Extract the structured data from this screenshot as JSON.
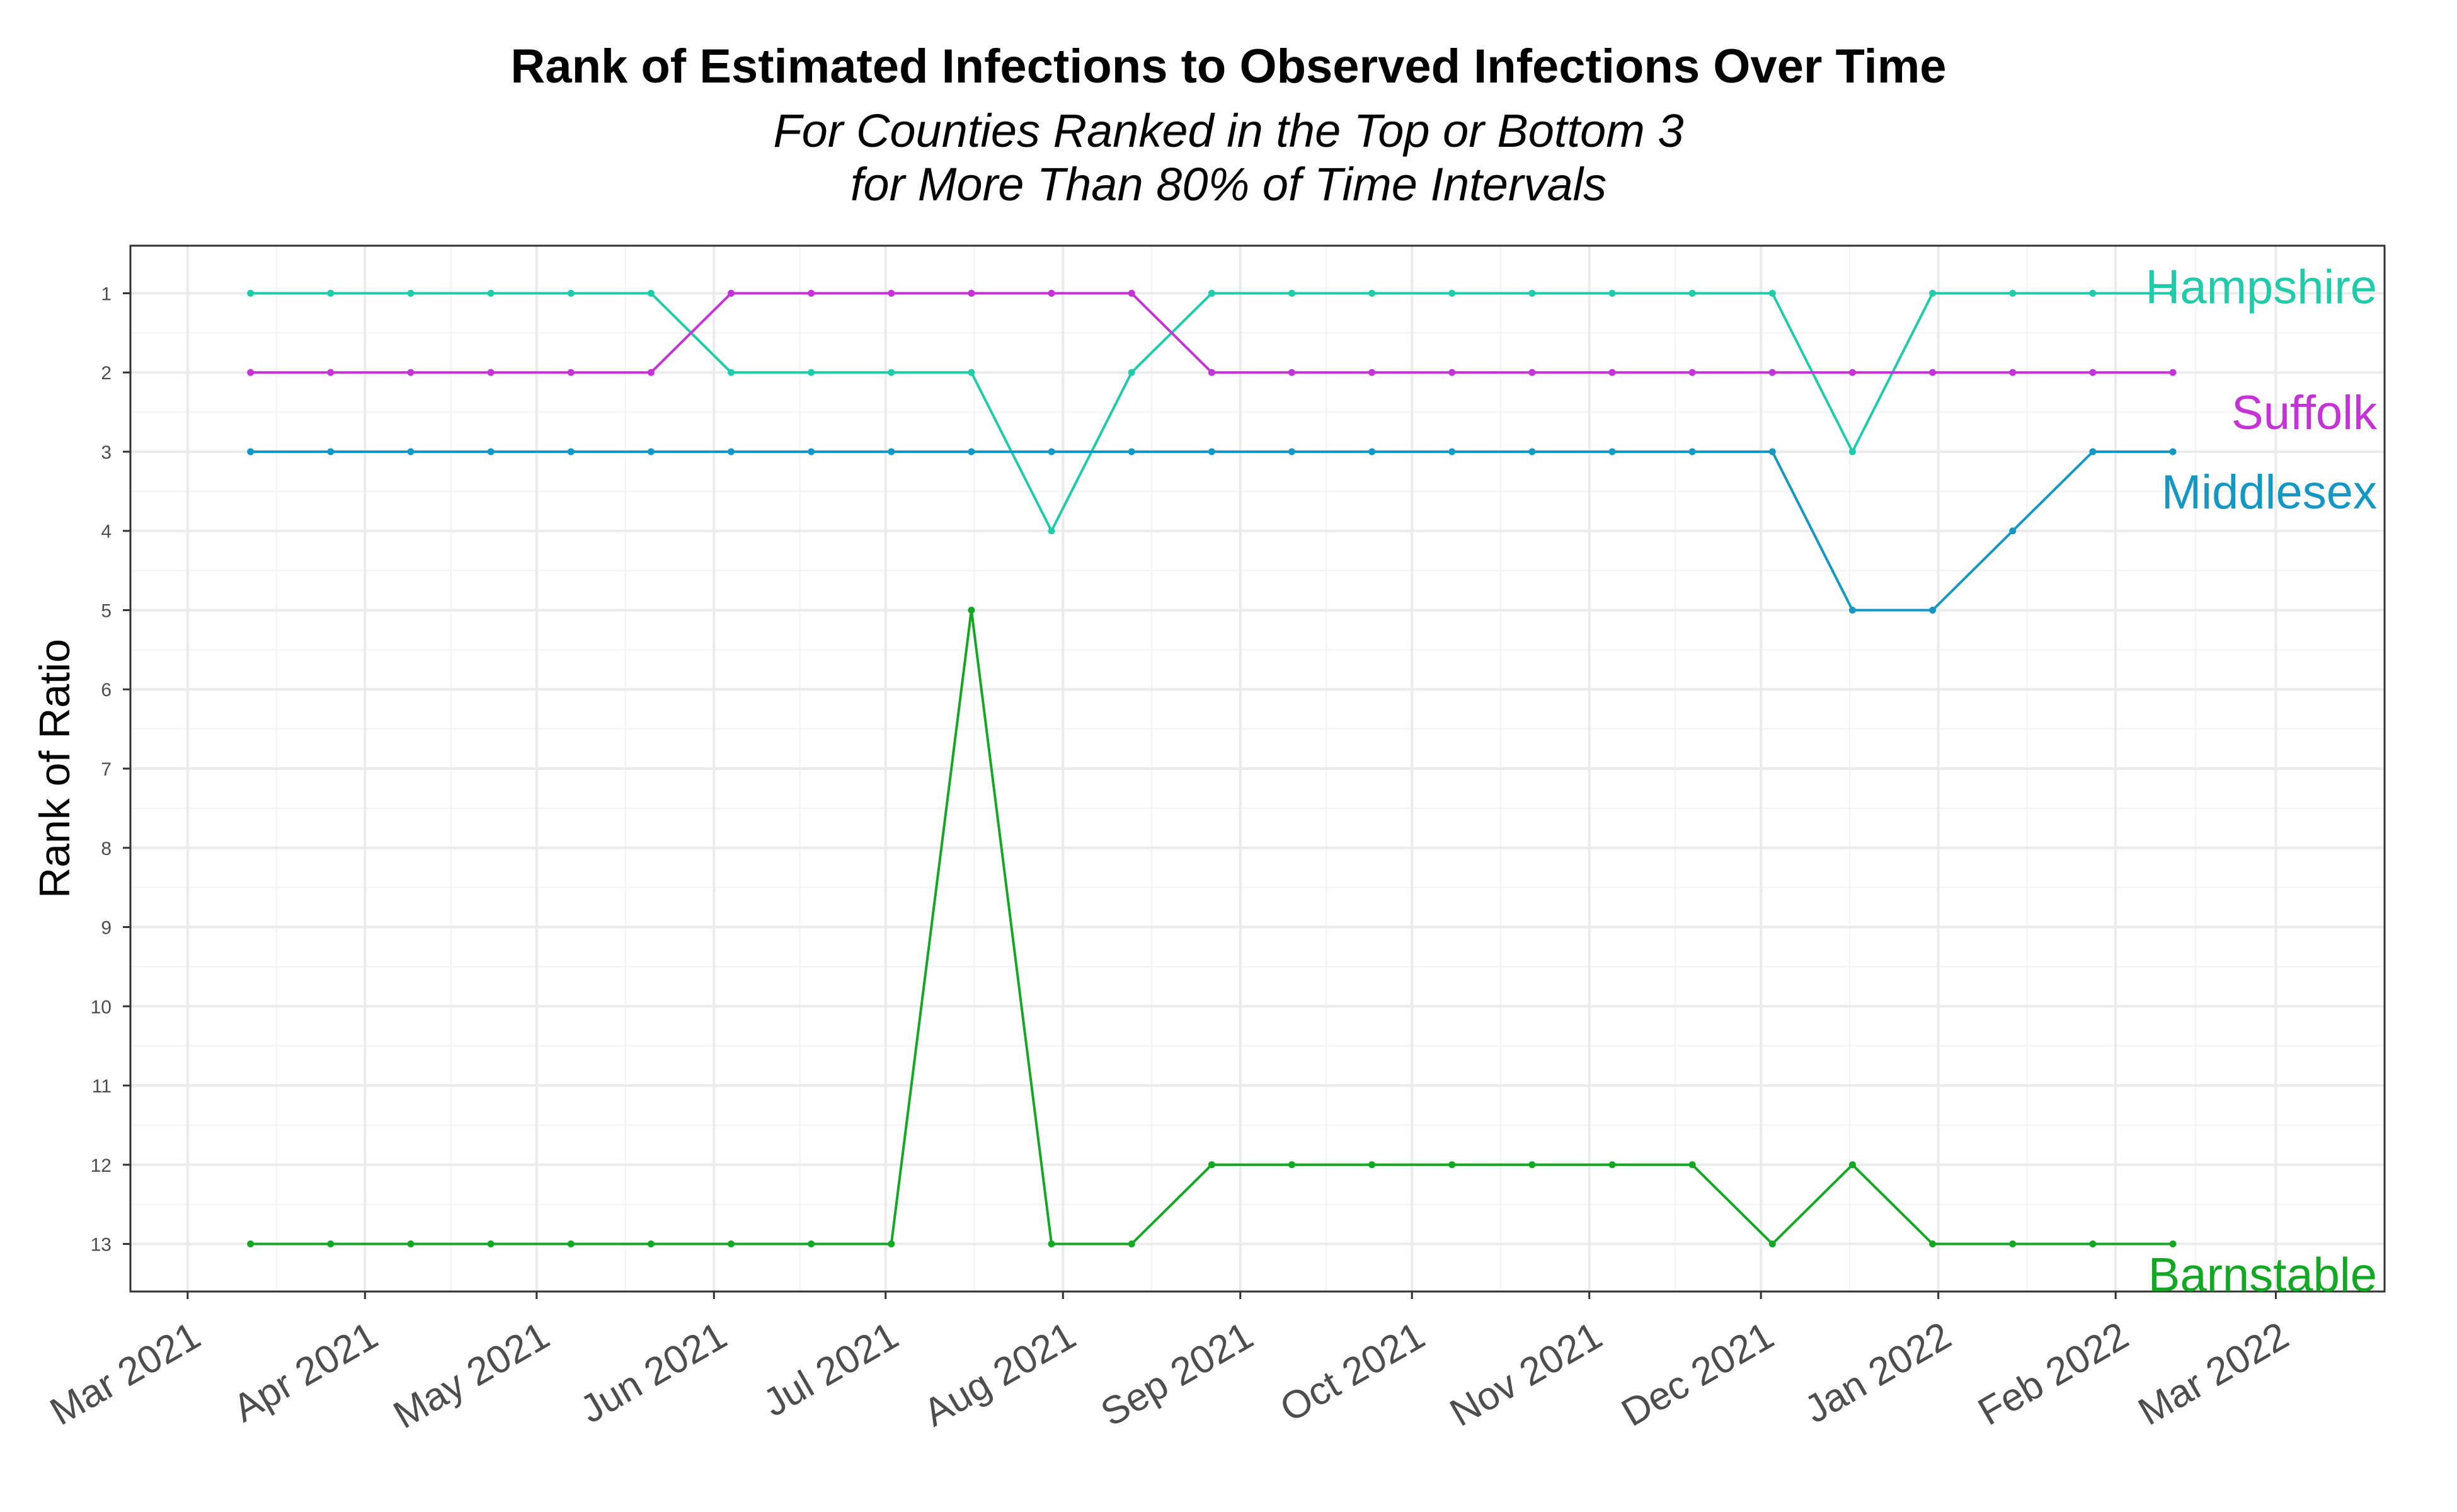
{
  "chart_data": {
    "type": "line",
    "title": "Rank of Estimated Infections to Observed Infections Over Time",
    "subtitle": [
      "For Counties Ranked in the Top or Bottom 3",
      "for More Than 80% of Time Intervals"
    ],
    "xlabel": "",
    "ylabel": "Rank of Ratio",
    "y_reversed": true,
    "ylim": [
      13.6,
      0.4
    ],
    "yticks": [
      1,
      2,
      3,
      4,
      5,
      6,
      7,
      8,
      9,
      10,
      11,
      12,
      13
    ],
    "xlim": [
      "2021-02-19",
      "2022-03-20"
    ],
    "xticks": [
      {
        "date": "2021-03-01",
        "label": "Mar 2021"
      },
      {
        "date": "2021-04-01",
        "label": "Apr 2021"
      },
      {
        "date": "2021-05-01",
        "label": "May 2021"
      },
      {
        "date": "2021-06-01",
        "label": "Jun 2021"
      },
      {
        "date": "2021-07-01",
        "label": "Jul 2021"
      },
      {
        "date": "2021-08-01",
        "label": "Aug 2021"
      },
      {
        "date": "2021-09-01",
        "label": "Sep 2021"
      },
      {
        "date": "2021-10-01",
        "label": "Oct 2021"
      },
      {
        "date": "2021-11-01",
        "label": "Nov 2021"
      },
      {
        "date": "2021-12-01",
        "label": "Dec 2021"
      },
      {
        "date": "2022-01-01",
        "label": "Jan 2022"
      },
      {
        "date": "2022-02-01",
        "label": "Feb 2022"
      },
      {
        "date": "2022-03-01",
        "label": "Mar 2022"
      }
    ],
    "grid": true,
    "x": [
      "2021-03-12",
      "2021-03-26",
      "2021-04-09",
      "2021-04-23",
      "2021-05-07",
      "2021-05-21",
      "2021-06-04",
      "2021-06-18",
      "2021-07-02",
      "2021-07-16",
      "2021-07-30",
      "2021-08-13",
      "2021-08-27",
      "2021-09-10",
      "2021-09-24",
      "2021-10-08",
      "2021-10-22",
      "2021-11-05",
      "2021-11-19",
      "2021-12-03",
      "2021-12-17",
      "2021-12-31",
      "2022-01-14",
      "2022-01-28",
      "2022-02-11"
    ],
    "series": [
      {
        "name": "Hampshire",
        "color": "#1fcba8",
        "values": [
          1,
          1,
          1,
          1,
          1,
          1,
          2,
          2,
          2,
          2,
          4,
          2,
          1,
          1,
          1,
          1,
          1,
          1,
          1,
          1,
          3,
          1,
          1,
          1,
          1
        ]
      },
      {
        "name": "Suffolk",
        "color": "#c333d6",
        "values": [
          2,
          2,
          2,
          2,
          2,
          2,
          1,
          1,
          1,
          1,
          1,
          1,
          2,
          2,
          2,
          2,
          2,
          2,
          2,
          2,
          2,
          2,
          2,
          2,
          2
        ]
      },
      {
        "name": "Middlesex",
        "color": "#1497c4",
        "values": [
          3,
          3,
          3,
          3,
          3,
          3,
          3,
          3,
          3,
          3,
          3,
          3,
          3,
          3,
          3,
          3,
          3,
          3,
          3,
          3,
          5,
          5,
          4,
          3,
          3
        ]
      },
      {
        "name": "Barnstable",
        "color": "#13a824",
        "values": [
          13,
          13,
          13,
          13,
          13,
          13,
          13,
          13,
          13,
          5,
          13,
          13,
          12,
          12,
          12,
          12,
          12,
          12,
          12,
          13,
          12,
          13,
          13,
          13,
          13
        ]
      }
    ]
  }
}
